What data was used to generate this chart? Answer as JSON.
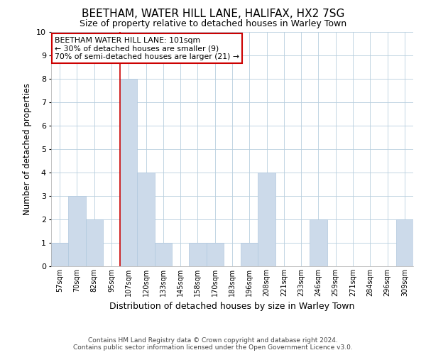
{
  "title": "BEETHAM, WATER HILL LANE, HALIFAX, HX2 7SG",
  "subtitle": "Size of property relative to detached houses in Warley Town",
  "xlabel": "Distribution of detached houses by size in Warley Town",
  "ylabel": "Number of detached properties",
  "categories": [
    "57sqm",
    "70sqm",
    "82sqm",
    "95sqm",
    "107sqm",
    "120sqm",
    "133sqm",
    "145sqm",
    "158sqm",
    "170sqm",
    "183sqm",
    "196sqm",
    "208sqm",
    "221sqm",
    "233sqm",
    "246sqm",
    "259sqm",
    "271sqm",
    "284sqm",
    "296sqm",
    "309sqm"
  ],
  "values": [
    1,
    3,
    2,
    0,
    8,
    4,
    1,
    0,
    1,
    1,
    0,
    1,
    4,
    0,
    0,
    2,
    0,
    0,
    0,
    0,
    2
  ],
  "bar_color": "#ccdaea",
  "bar_edge_color": "#b0c8de",
  "subject_line_index": 4,
  "subject_line_color": "#cc0000",
  "ylim": [
    0,
    10
  ],
  "yticks": [
    0,
    1,
    2,
    3,
    4,
    5,
    6,
    7,
    8,
    9,
    10
  ],
  "annotation_text": "BEETHAM WATER HILL LANE: 101sqm\n← 30% of detached houses are smaller (9)\n70% of semi-detached houses are larger (21) →",
  "annotation_box_color": "#ffffff",
  "annotation_box_edge_color": "#cc0000",
  "footer_line1": "Contains HM Land Registry data © Crown copyright and database right 2024.",
  "footer_line2": "Contains public sector information licensed under the Open Government Licence v3.0.",
  "background_color": "#ffffff",
  "plot_bg_color": "#ffffff",
  "grid_color": "#b8cede"
}
